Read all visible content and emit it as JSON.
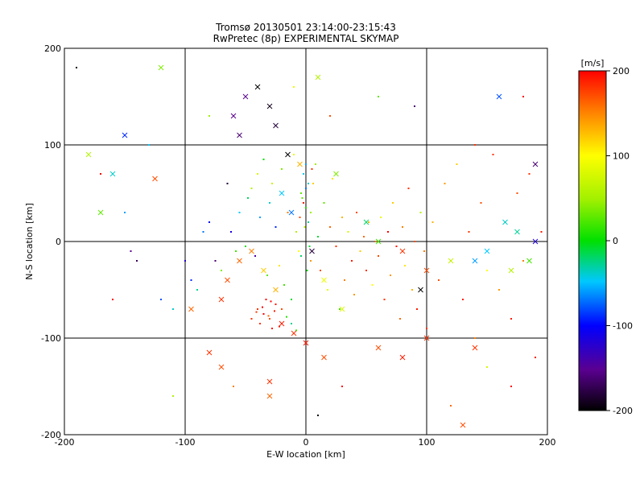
{
  "chart_data": {
    "type": "scatter",
    "title": "Tromsø 20130501 23:14:00-23:15:43",
    "subtitle": "RwPretec (8p) EXPERIMENTAL SKYMAP",
    "xlabel": "E-W location [km]",
    "ylabel": "N-S location [km]",
    "xlim": [
      -200,
      200
    ],
    "ylim": [
      -200,
      200
    ],
    "x_ticks": [
      "-200",
      "-100",
      "0",
      "100",
      "200"
    ],
    "y_ticks": [
      "-200",
      "-100",
      "0",
      "100",
      "200"
    ],
    "grid": true,
    "colorbar": {
      "label": "[m/s]",
      "range": [
        -200,
        200
      ],
      "ticks": [
        "200",
        "100",
        "0",
        "-100",
        "-200"
      ]
    },
    "series": [
      {
        "marker": "dot",
        "points": [
          [
            -190,
            180
          ],
          [
            -150,
            30
          ],
          [
            -145,
            -10
          ],
          [
            -140,
            -20
          ],
          [
            -120,
            -60
          ],
          [
            -110,
            -70
          ],
          [
            -100,
            -20
          ],
          [
            -95,
            -40
          ],
          [
            -90,
            -50
          ],
          [
            -85,
            10
          ],
          [
            -80,
            20
          ],
          [
            -75,
            -20
          ],
          [
            -70,
            -30
          ],
          [
            -65,
            60
          ],
          [
            -62,
            10
          ],
          [
            -58,
            -10
          ],
          [
            -55,
            30
          ],
          [
            -50,
            -5
          ],
          [
            -48,
            45
          ],
          [
            -45,
            55
          ],
          [
            -42,
            -15
          ],
          [
            -40,
            70
          ],
          [
            -38,
            25
          ],
          [
            -35,
            85
          ],
          [
            -32,
            -35
          ],
          [
            -30,
            40
          ],
          [
            -28,
            60
          ],
          [
            -25,
            15
          ],
          [
            -22,
            -25
          ],
          [
            -20,
            75
          ],
          [
            -18,
            -45
          ],
          [
            -15,
            30
          ],
          [
            -12,
            -60
          ],
          [
            -10,
            90
          ],
          [
            -8,
            10
          ],
          [
            -6,
            -10
          ],
          [
            -4,
            50
          ],
          [
            -2,
            70
          ],
          [
            0,
            35
          ],
          [
            2,
            20
          ],
          [
            4,
            -20
          ],
          [
            6,
            60
          ],
          [
            8,
            80
          ],
          [
            10,
            5
          ],
          [
            12,
            -30
          ],
          [
            15,
            40
          ],
          [
            18,
            -50
          ],
          [
            20,
            15
          ],
          [
            22,
            65
          ],
          [
            25,
            -5
          ],
          [
            28,
            -70
          ],
          [
            30,
            25
          ],
          [
            32,
            -40
          ],
          [
            35,
            10
          ],
          [
            38,
            -20
          ],
          [
            40,
            -55
          ],
          [
            42,
            30
          ],
          [
            45,
            -10
          ],
          [
            48,
            5
          ],
          [
            50,
            -30
          ],
          [
            52,
            20
          ],
          [
            55,
            -45
          ],
          [
            58,
            0
          ],
          [
            60,
            -15
          ],
          [
            62,
            25
          ],
          [
            65,
            -60
          ],
          [
            68,
            10
          ],
          [
            70,
            -35
          ],
          [
            72,
            40
          ],
          [
            75,
            -5
          ],
          [
            78,
            -80
          ],
          [
            80,
            15
          ],
          [
            82,
            -25
          ],
          [
            85,
            55
          ],
          [
            88,
            -50
          ],
          [
            90,
            0
          ],
          [
            92,
            -70
          ],
          [
            95,
            30
          ],
          [
            98,
            -10
          ],
          [
            100,
            -90
          ],
          [
            105,
            20
          ],
          [
            110,
            -40
          ],
          [
            115,
            60
          ],
          [
            120,
            -20
          ],
          [
            125,
            80
          ],
          [
            130,
            -60
          ],
          [
            135,
            10
          ],
          [
            140,
            -100
          ],
          [
            145,
            40
          ],
          [
            150,
            -30
          ],
          [
            155,
            90
          ],
          [
            160,
            -50
          ],
          [
            165,
            20
          ],
          [
            170,
            -80
          ],
          [
            175,
            50
          ],
          [
            180,
            -20
          ],
          [
            185,
            70
          ],
          [
            190,
            -120
          ],
          [
            195,
            10
          ],
          [
            -40,
            -70
          ],
          [
            -35,
            -75
          ],
          [
            -30,
            -80
          ],
          [
            -25,
            -65
          ],
          [
            -38,
            -85
          ],
          [
            -28,
            -90
          ],
          [
            -33,
            -60
          ],
          [
            -20,
            -70
          ],
          [
            -45,
            -80
          ],
          [
            -26,
            -72
          ],
          [
            -36,
            -68
          ],
          [
            -31,
            -77
          ],
          [
            -22,
            -88
          ],
          [
            -41,
            -73
          ],
          [
            -29,
            -62
          ],
          [
            -16,
            -78
          ],
          [
            -12,
            -85
          ],
          [
            -8,
            -92
          ],
          [
            0,
            80
          ],
          [
            2,
            60
          ],
          [
            -3,
            45
          ],
          [
            4,
            30
          ],
          [
            -1,
            15
          ],
          [
            3,
            -5
          ],
          [
            -4,
            -15
          ],
          [
            1,
            -30
          ],
          [
            0,
            55
          ],
          [
            -2,
            40
          ],
          [
            5,
            75
          ],
          [
            -5,
            25
          ],
          [
            30,
            -150
          ],
          [
            -60,
            -150
          ],
          [
            120,
            -170
          ],
          [
            150,
            -130
          ],
          [
            -110,
            -160
          ],
          [
            10,
            -180
          ],
          [
            60,
            150
          ],
          [
            90,
            140
          ],
          [
            -10,
            160
          ],
          [
            20,
            130
          ],
          [
            -80,
            130
          ],
          [
            140,
            100
          ],
          [
            -130,
            100
          ],
          [
            180,
            150
          ],
          [
            -170,
            70
          ],
          [
            170,
            -150
          ],
          [
            -160,
            -60
          ]
        ],
        "values": [
          -190,
          -60,
          -150,
          -170,
          -80,
          -40,
          -120,
          -90,
          -30,
          -70,
          -100,
          -160,
          40,
          -180,
          -110,
          20,
          -50,
          10,
          -20,
          60,
          -140,
          80,
          -60,
          0,
          30,
          -40,
          70,
          -90,
          110,
          40,
          20,
          150,
          -10,
          90,
          60,
          100,
          30,
          -50,
          10,
          -30,
          140,
          120,
          50,
          -10,
          170,
          30,
          90,
          160,
          110,
          180,
          20,
          130,
          150,
          80,
          190,
          140,
          170,
          120,
          160,
          180,
          130,
          100,
          150,
          170,
          90,
          180,
          200,
          140,
          120,
          190,
          160,
          150,
          110,
          180,
          130,
          170,
          190,
          60,
          150,
          180,
          130,
          170,
          140,
          160,
          120,
          190,
          180,
          150,
          170,
          100,
          180,
          140,
          160,
          190,
          170,
          150,
          180,
          190,
          190,
          180,
          200,
          170,
          190,
          180,
          190,
          200,
          170,
          180,
          190,
          200,
          160,
          190,
          180,
          200,
          10,
          -30,
          20,
          -60,
          -40,
          30,
          50,
          60,
          -10,
          -20,
          0,
          -70,
          190,
          180,
          170,
          200,
          150,
          160,
          80,
          60,
          -200,
          30,
          -160,
          90,
          170,
          50,
          180,
          -50
        ]
      },
      {
        "marker": "x",
        "points": [
          [
            -40,
            160
          ],
          [
            -30,
            140
          ],
          [
            -25,
            120
          ],
          [
            -60,
            130
          ],
          [
            -55,
            110
          ],
          [
            -15,
            90
          ],
          [
            -50,
            150
          ],
          [
            10,
            170
          ],
          [
            -120,
            180
          ],
          [
            -150,
            110
          ],
          [
            -180,
            90
          ],
          [
            -160,
            70
          ],
          [
            -170,
            30
          ],
          [
            -125,
            65
          ],
          [
            -95,
            -70
          ],
          [
            -70,
            -60
          ],
          [
            -65,
            -40
          ],
          [
            -55,
            -20
          ],
          [
            -45,
            -10
          ],
          [
            -35,
            -30
          ],
          [
            -25,
            -50
          ],
          [
            -20,
            -85
          ],
          [
            -10,
            -95
          ],
          [
            0,
            -105
          ],
          [
            15,
            -120
          ],
          [
            -30,
            -145
          ],
          [
            -30,
            -160
          ],
          [
            -70,
            -130
          ],
          [
            -80,
            -115
          ],
          [
            50,
            20
          ],
          [
            60,
            0
          ],
          [
            80,
            -10
          ],
          [
            100,
            -30
          ],
          [
            120,
            -20
          ],
          [
            140,
            -20
          ],
          [
            150,
            -10
          ],
          [
            165,
            20
          ],
          [
            175,
            10
          ],
          [
            190,
            0
          ],
          [
            185,
            -20
          ],
          [
            170,
            -30
          ],
          [
            160,
            150
          ],
          [
            130,
            -190
          ],
          [
            140,
            -110
          ],
          [
            190,
            80
          ],
          [
            30,
            -70
          ],
          [
            95,
            -50
          ],
          [
            -20,
            50
          ],
          [
            5,
            -10
          ],
          [
            -5,
            80
          ],
          [
            25,
            70
          ],
          [
            -12,
            30
          ],
          [
            15,
            -40
          ],
          [
            80,
            -120
          ],
          [
            100,
            -100
          ],
          [
            60,
            -110
          ]
        ],
        "values": [
          -200,
          -190,
          -180,
          -150,
          -160,
          -200,
          -150,
          60,
          40,
          -90,
          60,
          -40,
          30,
          170,
          160,
          180,
          170,
          160,
          150,
          120,
          130,
          190,
          180,
          190,
          170,
          180,
          160,
          170,
          180,
          -20,
          20,
          180,
          170,
          70,
          -60,
          -50,
          -40,
          -30,
          -120,
          20,
          60,
          -80,
          170,
          180,
          -160,
          80,
          -200,
          -50,
          -180,
          130,
          40,
          -70,
          90,
          190,
          180,
          170
        ]
      }
    ]
  }
}
